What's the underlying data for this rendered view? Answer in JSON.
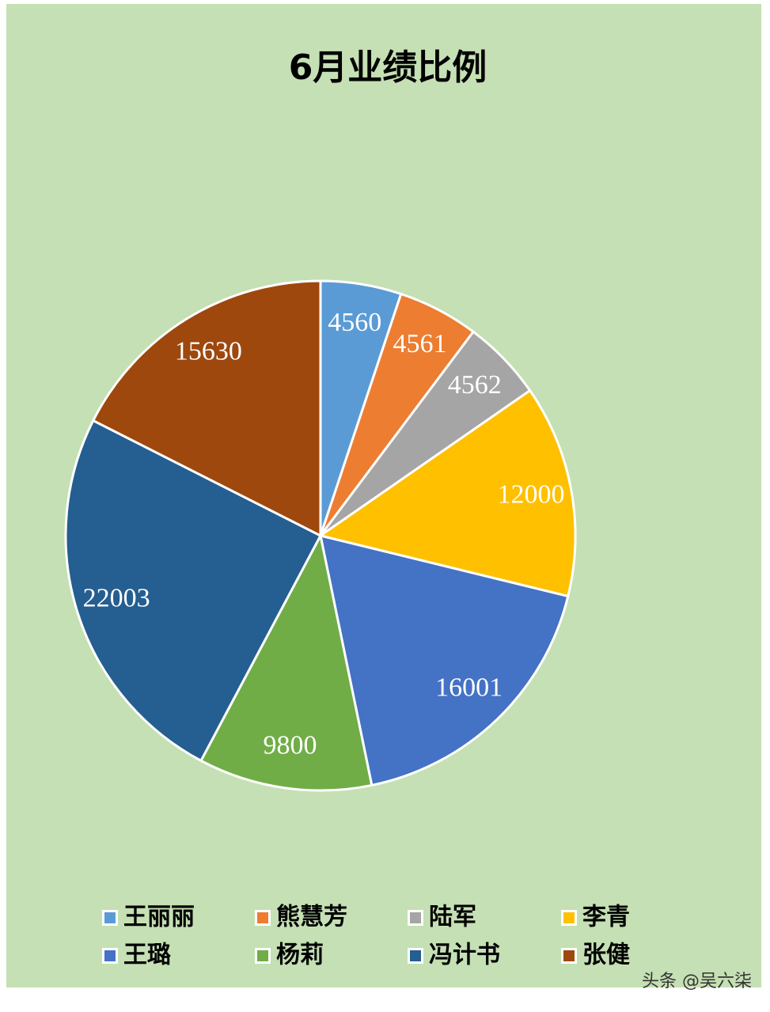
{
  "chart_data": {
    "type": "pie",
    "title": "6月业绩比例",
    "categories": [
      "王丽丽",
      "熊慧芳",
      "陆军",
      "李青",
      "王璐",
      "杨莉",
      "冯计书",
      "张健"
    ],
    "values": [
      4560,
      4561,
      4562,
      12000,
      16001,
      9800,
      22003,
      15630
    ],
    "colors": [
      "#5b9bd5",
      "#ed7d31",
      "#a5a5a5",
      "#ffc000",
      "#4472c4",
      "#70ad47",
      "#255e91",
      "#9e480e"
    ],
    "legend": "bottom",
    "watermark": "头条 @吴六柒"
  }
}
